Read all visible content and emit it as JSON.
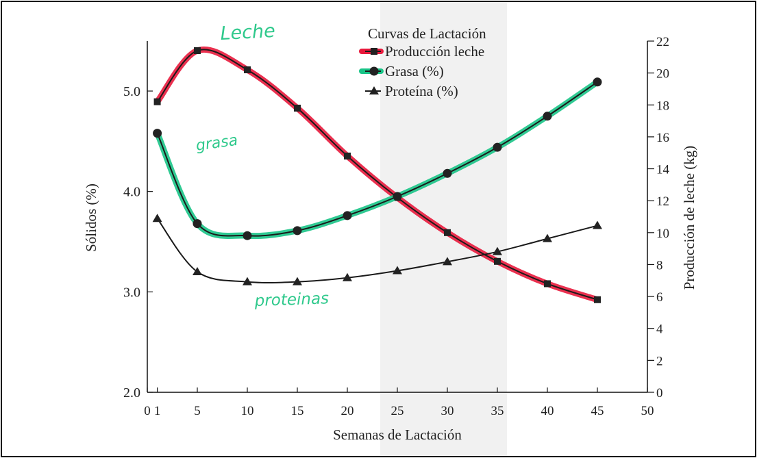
{
  "chart_data": {
    "type": "line",
    "title": "Curvas de Lactación",
    "xlabel": "Semanas de Lactación",
    "ylabel_left": "Sólidos (%)",
    "ylabel_right": "Producción de leche (kg)",
    "xlim": [
      0,
      50
    ],
    "ylim_left": [
      2.0,
      5.5
    ],
    "ylim_right": [
      0,
      22
    ],
    "x_ticks": [
      0,
      1,
      5,
      10,
      15,
      20,
      25,
      30,
      35,
      40,
      45,
      50
    ],
    "y_left_ticks": [
      {
        "value": 2.0,
        "label": "2.0"
      },
      {
        "value": 3.0,
        "label": "3.0"
      },
      {
        "value": 4.0,
        "label": "4.0"
      },
      {
        "value": 5.0,
        "label": "5.0"
      }
    ],
    "y_right_ticks": [
      0,
      2,
      4,
      6,
      8,
      10,
      12,
      14,
      16,
      18,
      20,
      22
    ],
    "x": [
      1,
      5,
      10,
      15,
      20,
      25,
      30,
      35,
      40,
      45
    ],
    "series": [
      {
        "name": "Producción leche",
        "axis": "right",
        "marker": "square",
        "highlight": "#e8193c",
        "values": [
          18.2,
          21.4,
          20.2,
          17.8,
          14.8,
          12.2,
          10.0,
          8.2,
          6.8,
          5.8
        ]
      },
      {
        "name": "Grasa (%)",
        "axis": "left",
        "marker": "circle",
        "highlight": "#19c487",
        "values": [
          4.58,
          3.68,
          3.56,
          3.61,
          3.76,
          3.95,
          4.18,
          4.44,
          4.75,
          5.09
        ]
      },
      {
        "name": "Proteína (%)",
        "axis": "left",
        "marker": "triangle",
        "highlight": null,
        "values": [
          3.73,
          3.2,
          3.1,
          3.1,
          3.14,
          3.21,
          3.3,
          3.4,
          3.53,
          3.66
        ]
      }
    ],
    "legend_position": "top-center",
    "annotations": [
      {
        "text": "Leche",
        "color": "#2fc98c"
      },
      {
        "text": "grasa",
        "color": "#2fc98c"
      },
      {
        "text": "proteinas",
        "color": "#2fc98c"
      }
    ],
    "grid": false
  }
}
